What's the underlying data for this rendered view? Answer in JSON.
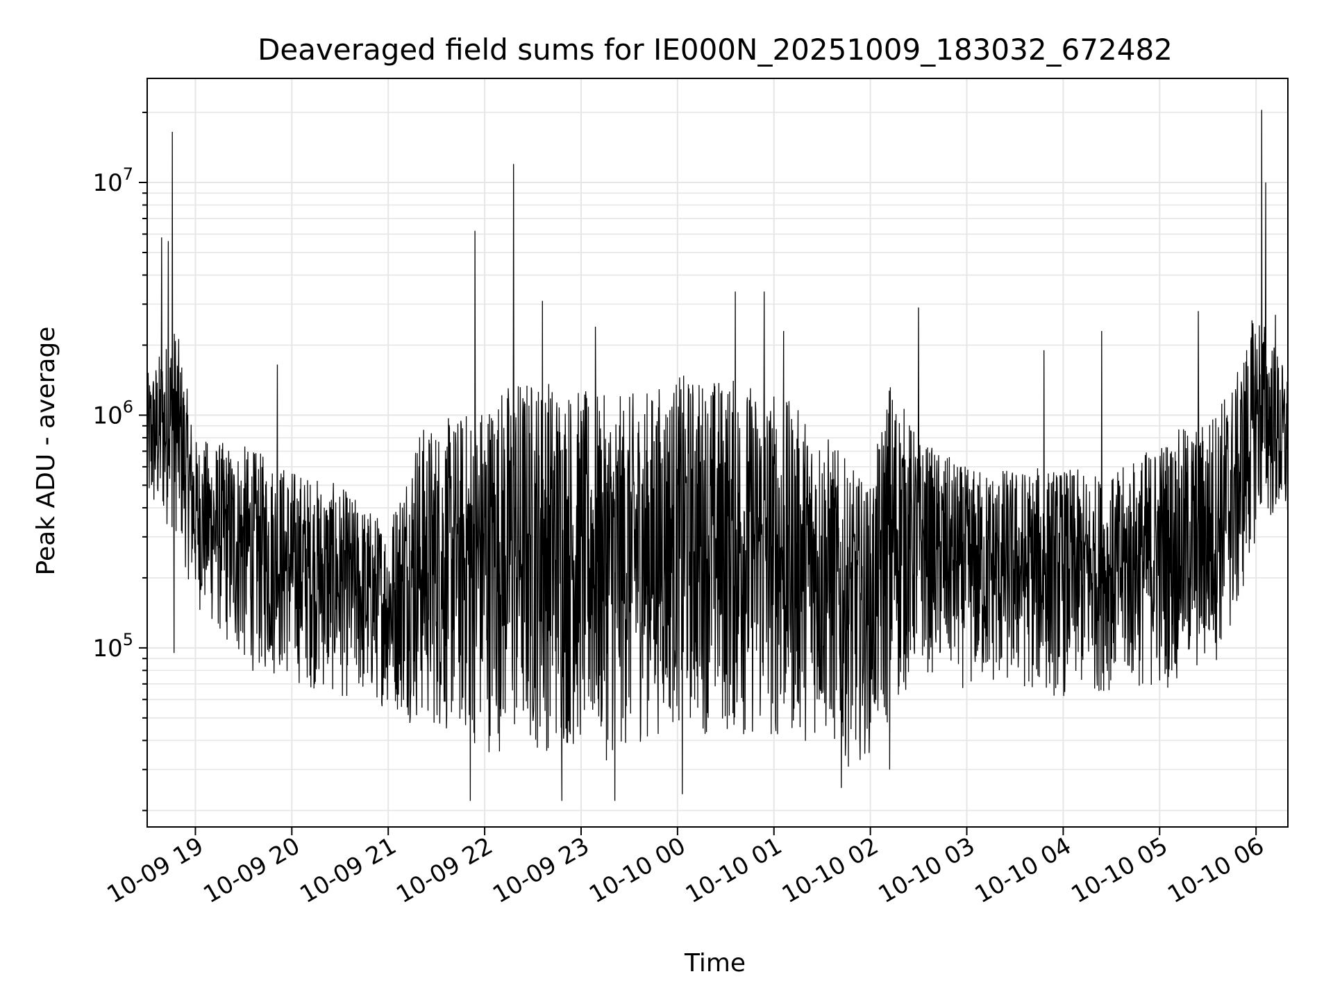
{
  "chart_data": {
    "type": "line",
    "title": "Deaveraged field sums for IE000N_20251009_183032_672482",
    "xlabel": "Time",
    "ylabel": "Peak ADU - average",
    "yscale": "log",
    "ylim": [
      17000,
      28000000
    ],
    "xlim_hours": [
      18.5,
      30.33
    ],
    "grid": true,
    "line_color": "#000000",
    "x_ticks": [
      {
        "hour": 19,
        "label": "10-09 19"
      },
      {
        "hour": 20,
        "label": "10-09 20"
      },
      {
        "hour": 21,
        "label": "10-09 21"
      },
      {
        "hour": 22,
        "label": "10-09 22"
      },
      {
        "hour": 23,
        "label": "10-09 23"
      },
      {
        "hour": 24,
        "label": "10-10 00"
      },
      {
        "hour": 25,
        "label": "10-10 01"
      },
      {
        "hour": 26,
        "label": "10-10 02"
      },
      {
        "hour": 27,
        "label": "10-10 03"
      },
      {
        "hour": 28,
        "label": "10-10 04"
      },
      {
        "hour": 29,
        "label": "10-10 05"
      },
      {
        "hour": 30,
        "label": "10-10 06"
      }
    ],
    "y_ticks": [
      {
        "value": 100000,
        "base": "10",
        "exp": "5"
      },
      {
        "value": 1000000,
        "base": "10",
        "exp": "6"
      },
      {
        "value": 10000000,
        "base": "10",
        "exp": "7"
      }
    ],
    "envelope_hours": [
      18.5,
      18.8,
      19.0,
      19.5,
      20.0,
      20.5,
      21.0,
      21.3,
      21.7,
      22.0,
      22.3,
      22.7,
      23.0,
      23.3,
      23.7,
      24.0,
      24.5,
      25.0,
      25.5,
      25.8,
      26.0,
      26.2,
      26.5,
      27.0,
      27.5,
      28.0,
      28.5,
      29.0,
      29.5,
      29.8,
      30.0,
      30.1,
      30.33
    ],
    "envelope_low": [
      350000,
      300000,
      150000,
      80000,
      70000,
      60000,
      55000,
      45000,
      40000,
      35000,
      35000,
      35000,
      35000,
      32000,
      40000,
      45000,
      40000,
      38000,
      40000,
      30000,
      35000,
      45000,
      80000,
      65000,
      65000,
      60000,
      65000,
      65000,
      75000,
      120000,
      300000,
      350000,
      300000
    ],
    "envelope_high": [
      1500000,
      2500000,
      800000,
      750000,
      600000,
      500000,
      350000,
      900000,
      1000000,
      1200000,
      1500000,
      1500000,
      1300000,
      1200000,
      1300000,
      1500000,
      1500000,
      1300000,
      900000,
      600000,
      500000,
      1500000,
      800000,
      600000,
      600000,
      600000,
      550000,
      800000,
      1000000,
      1500000,
      3000000,
      2500000,
      1500000
    ],
    "spikes": [
      {
        "hour": 18.76,
        "value": 16500000
      },
      {
        "hour": 18.65,
        "value": 5800000
      },
      {
        "hour": 18.72,
        "value": 5600000
      },
      {
        "hour": 18.78,
        "value": 95000
      },
      {
        "hour": 19.85,
        "value": 1650000
      },
      {
        "hour": 21.9,
        "value": 6200000
      },
      {
        "hour": 22.3,
        "value": 12000000
      },
      {
        "hour": 22.6,
        "value": 3100000
      },
      {
        "hour": 23.15,
        "value": 2400000
      },
      {
        "hour": 24.6,
        "value": 3400000
      },
      {
        "hour": 24.9,
        "value": 3400000
      },
      {
        "hour": 25.1,
        "value": 2300000
      },
      {
        "hour": 26.5,
        "value": 2900000
      },
      {
        "hour": 27.8,
        "value": 1900000
      },
      {
        "hour": 28.4,
        "value": 2300000
      },
      {
        "hour": 29.4,
        "value": 2800000
      },
      {
        "hour": 30.06,
        "value": 20500000
      },
      {
        "hour": 30.1,
        "value": 10000000
      },
      {
        "hour": 30.2,
        "value": 2700000
      },
      {
        "hour": 22.8,
        "value": 22000
      },
      {
        "hour": 21.85,
        "value": 22000
      },
      {
        "hour": 23.35,
        "value": 22000
      },
      {
        "hour": 24.05,
        "value": 23500
      },
      {
        "hour": 26.2,
        "value": 30000
      },
      {
        "hour": 25.7,
        "value": 25000
      }
    ]
  }
}
